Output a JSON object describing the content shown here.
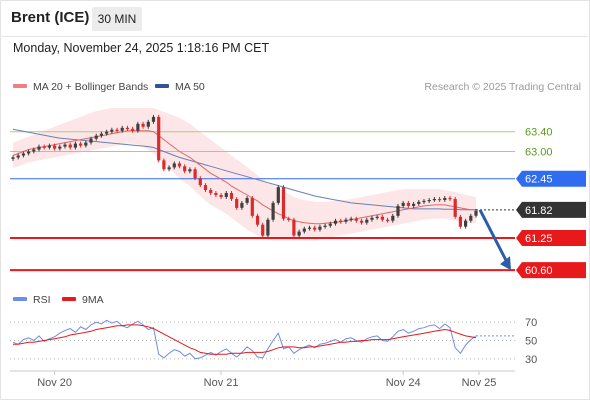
{
  "header": {
    "title": "Brent (ICE)",
    "timeframe": "30 MIN"
  },
  "datetime": "Monday, November 24, 2025 1:18:16 PM CET",
  "legend": {
    "items": [
      {
        "label": "MA 20 + Bollinger Bands",
        "color": "#f08080"
      },
      {
        "label": "MA 50",
        "color": "#2f5597"
      }
    ],
    "credit": "Research © 2025 Trading Central"
  },
  "colors": {
    "up": "#3f3f3f",
    "down": "#d92b2b",
    "ma20": "#e06666",
    "ma50": "#6a7fb5",
    "band": "#fde6e8",
    "support": "#e8191b",
    "resistance": "#2f6cf0",
    "target_line": "#a9cf78",
    "target_text": "#5c9a1e",
    "current": "#333333",
    "arrow": "#2c5ea8",
    "rsi": "#6c8de8",
    "rsi_ma": "#e8191b"
  },
  "chart_data": [
    {
      "type": "candlestick",
      "title": "",
      "x_ticks": [
        "Nov 20",
        "Nov 21",
        "Nov 24",
        "Nov 25"
      ],
      "ylim": [
        60.3,
        63.9
      ],
      "levels": [
        {
          "value": 63.4,
          "label": "63.40",
          "kind": "target"
        },
        {
          "value": 63.0,
          "label": "63.00",
          "kind": "target"
        },
        {
          "value": 62.45,
          "label": "62.45",
          "kind": "resistance"
        },
        {
          "value": 61.82,
          "label": "61.82",
          "kind": "current"
        },
        {
          "value": 61.25,
          "label": "61.25",
          "kind": "support"
        },
        {
          "value": 60.6,
          "label": "60.60",
          "kind": "support"
        }
      ],
      "forecast_arrow": {
        "from": 61.82,
        "to": 60.6
      },
      "close": [
        62.88,
        62.92,
        62.96,
        63.0,
        63.04,
        63.1,
        63.08,
        63.12,
        63.06,
        63.1,
        63.14,
        63.08,
        63.16,
        63.12,
        63.18,
        63.26,
        63.32,
        63.36,
        63.4,
        63.44,
        63.42,
        63.48,
        63.46,
        63.42,
        63.56,
        63.5,
        63.6,
        63.7,
        62.82,
        62.64,
        62.68,
        62.76,
        62.7,
        62.6,
        62.64,
        62.46,
        62.32,
        62.22,
        62.16,
        62.12,
        62.08,
        62.16,
        62.04,
        61.86,
        61.96,
        62.06,
        61.7,
        61.52,
        61.3,
        61.62,
        61.96,
        62.28,
        61.64,
        61.62,
        61.3,
        61.38,
        61.44,
        61.46,
        61.42,
        61.48,
        61.5,
        61.54,
        61.6,
        61.58,
        61.62,
        61.64,
        61.6,
        61.56,
        61.62,
        61.66,
        61.68,
        61.62,
        61.6,
        61.7,
        61.9,
        61.96,
        61.9,
        61.94,
        61.98,
        62.0,
        62.02,
        62.04,
        62.02,
        62.06,
        62.04,
        61.68,
        61.48,
        61.6,
        61.7,
        61.8
      ],
      "ma20": [
        62.92,
        62.96,
        63.0,
        63.04,
        63.06,
        63.08,
        63.1,
        63.12,
        63.14,
        63.16,
        63.18,
        63.2,
        63.22,
        63.24,
        63.26,
        63.28,
        63.3,
        63.32,
        63.34,
        63.36,
        63.38,
        63.4,
        63.42,
        63.42,
        63.42,
        63.42,
        63.42,
        63.4,
        63.32,
        63.24,
        63.16,
        63.08,
        63.0,
        62.94,
        62.88,
        62.8,
        62.72,
        62.64,
        62.56,
        62.5,
        62.44,
        62.38,
        62.3,
        62.24,
        62.18,
        62.12,
        62.06,
        62.0,
        61.92,
        61.86,
        61.8,
        61.74,
        61.7,
        61.64,
        61.6,
        61.58,
        61.56,
        61.55,
        61.54,
        61.54,
        61.55,
        61.56,
        61.57,
        61.58,
        61.6,
        61.62,
        61.64,
        61.66,
        61.68,
        61.7,
        61.72,
        61.74,
        61.76,
        61.78,
        61.8,
        61.82,
        61.84,
        61.86,
        61.88,
        61.9,
        61.91,
        61.92,
        61.92,
        61.92,
        61.9,
        61.88,
        61.86,
        61.84,
        61.82,
        61.82
      ],
      "ma20_upper": [
        63.18,
        63.22,
        63.26,
        63.3,
        63.34,
        63.38,
        63.42,
        63.46,
        63.5,
        63.54,
        63.58,
        63.62,
        63.66,
        63.7,
        63.74,
        63.78,
        63.82,
        63.84,
        63.86,
        63.88,
        63.88,
        63.88,
        63.88,
        63.88,
        63.88,
        63.88,
        63.88,
        63.88,
        63.84,
        63.8,
        63.76,
        63.72,
        63.68,
        63.62,
        63.56,
        63.48,
        63.4,
        63.32,
        63.24,
        63.16,
        63.08,
        63.0,
        62.92,
        62.84,
        62.76,
        62.68,
        62.6,
        62.52,
        62.44,
        62.38,
        62.32,
        62.26,
        62.2,
        62.14,
        62.08,
        62.04,
        62.02,
        62.0,
        61.98,
        61.98,
        61.98,
        61.99,
        62.0,
        62.01,
        62.02,
        62.04,
        62.06,
        62.08,
        62.1,
        62.12,
        62.14,
        62.16,
        62.18,
        62.2,
        62.22,
        62.24,
        62.24,
        62.24,
        62.24,
        62.24,
        62.24,
        62.24,
        62.24,
        62.22,
        62.2,
        62.18,
        62.15,
        62.12,
        62.1,
        62.08
      ],
      "ma20_lower": [
        62.66,
        62.7,
        62.74,
        62.78,
        62.8,
        62.82,
        62.84,
        62.86,
        62.88,
        62.9,
        62.92,
        62.94,
        62.96,
        62.98,
        63.0,
        63.02,
        63.04,
        63.06,
        63.08,
        63.1,
        63.12,
        63.14,
        63.16,
        63.16,
        63.14,
        63.1,
        63.04,
        62.96,
        62.86,
        62.76,
        62.66,
        62.56,
        62.46,
        62.38,
        62.3,
        62.2,
        62.1,
        62.0,
        61.92,
        61.86,
        61.8,
        61.74,
        61.66,
        61.58,
        61.5,
        61.42,
        61.36,
        61.3,
        61.24,
        61.22,
        61.2,
        61.2,
        61.2,
        61.2,
        61.2,
        61.2,
        61.2,
        61.2,
        61.2,
        61.22,
        61.24,
        61.26,
        61.28,
        61.3,
        61.32,
        61.34,
        61.36,
        61.38,
        61.4,
        61.42,
        61.44,
        61.46,
        61.48,
        61.5,
        61.52,
        61.54,
        61.56,
        61.58,
        61.6,
        61.62,
        61.63,
        61.64,
        61.64,
        61.64,
        61.62,
        61.6,
        61.58,
        61.56,
        61.55,
        61.55
      ],
      "ma50": [
        63.45,
        63.43,
        63.41,
        63.39,
        63.37,
        63.35,
        63.33,
        63.31,
        63.29,
        63.27,
        63.26,
        63.25,
        63.24,
        63.23,
        63.22,
        63.21,
        63.2,
        63.19,
        63.18,
        63.17,
        63.16,
        63.15,
        63.14,
        63.13,
        63.12,
        63.11,
        63.1,
        63.08,
        63.04,
        63.0,
        62.96,
        62.92,
        62.88,
        62.85,
        62.82,
        62.79,
        62.76,
        62.73,
        62.7,
        62.67,
        62.64,
        62.61,
        62.58,
        62.55,
        62.52,
        62.49,
        62.46,
        62.43,
        62.4,
        62.37,
        62.34,
        62.31,
        62.28,
        62.25,
        62.22,
        62.19,
        62.16,
        62.13,
        62.1,
        62.08,
        62.06,
        62.04,
        62.02,
        62.0,
        61.98,
        61.96,
        61.95,
        61.94,
        61.93,
        61.92,
        61.91,
        61.9,
        61.89,
        61.88,
        61.87,
        61.86,
        61.85,
        61.84,
        61.84,
        61.84,
        61.84,
        61.84,
        61.84,
        61.83,
        61.83,
        61.83,
        61.82,
        61.82,
        61.82,
        61.82
      ]
    },
    {
      "type": "line",
      "title": "",
      "series": [
        {
          "name": "RSI",
          "color": "#6c8de8",
          "values": [
            48,
            46,
            51,
            53,
            50,
            55,
            49,
            52,
            54,
            58,
            61,
            63,
            59,
            65,
            62,
            67,
            70,
            68,
            72,
            69,
            71,
            66,
            64,
            68,
            71,
            67,
            62,
            64,
            35,
            31,
            36,
            40,
            38,
            33,
            36,
            30,
            31,
            34,
            37,
            34,
            38,
            41,
            36,
            32,
            37,
            43,
            39,
            32,
            31,
            41,
            50,
            58,
            41,
            43,
            36,
            40,
            43,
            45,
            42,
            46,
            47,
            49,
            51,
            48,
            52,
            53,
            50,
            48,
            52,
            54,
            55,
            50,
            49,
            54,
            60,
            62,
            58,
            60,
            63,
            64,
            66,
            67,
            63,
            68,
            64,
            42,
            36,
            45,
            51,
            55
          ]
        },
        {
          "name": "9MA",
          "color": "#e8191b",
          "values": [
            46,
            46,
            47,
            48,
            48,
            49,
            50,
            51,
            52,
            53,
            54,
            56,
            57,
            58,
            59,
            60,
            62,
            63,
            64,
            65,
            66,
            66,
            67,
            67,
            67,
            66,
            65,
            63,
            60,
            57,
            54,
            51,
            48,
            45,
            42,
            40,
            37,
            36,
            35,
            35,
            35,
            35,
            36,
            36,
            36,
            37,
            37,
            37,
            37,
            38,
            40,
            42,
            43,
            43,
            43,
            42,
            42,
            43,
            43,
            44,
            45,
            46,
            47,
            48,
            48,
            49,
            49,
            50,
            50,
            51,
            51,
            51,
            51,
            52,
            53,
            54,
            55,
            56,
            57,
            58,
            59,
            60,
            61,
            62,
            61,
            59,
            57,
            55,
            54,
            53
          ]
        }
      ],
      "ylim": [
        20,
        80
      ],
      "y_ticks": [
        "70",
        "50",
        "30"
      ]
    }
  ]
}
